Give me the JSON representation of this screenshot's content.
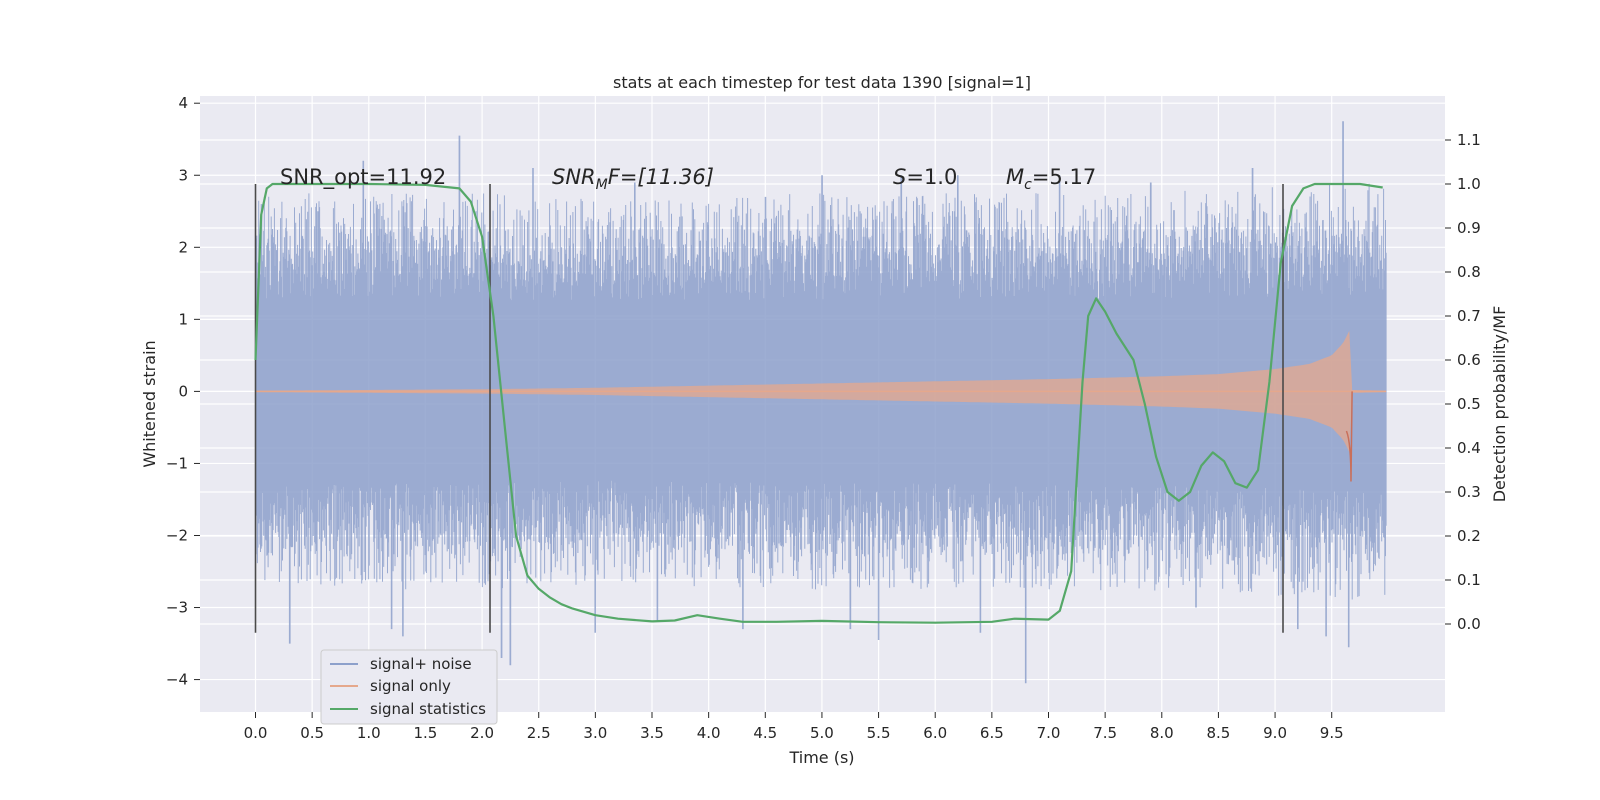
{
  "chart_data": {
    "type": "line",
    "title": "stats at each timestep for test data 1390 [signal=1]",
    "xlabel": "Time (s)",
    "ylabel_left": "Whitened strain",
    "ylabel_right": "Detection probability/MF",
    "xlim": [
      -0.49,
      10.5
    ],
    "ylim_left": [
      -4.45,
      4.1
    ],
    "ylim_right": [
      -0.2,
      1.2
    ],
    "x_ticks": [
      "0.0",
      "0.5",
      "1.0",
      "1.5",
      "2.0",
      "2.5",
      "3.0",
      "3.5",
      "4.0",
      "4.5",
      "5.0",
      "5.5",
      "6.0",
      "6.5",
      "7.0",
      "7.5",
      "8.0",
      "8.5",
      "9.0",
      "9.5"
    ],
    "y_ticks_left": [
      "−4",
      "−3",
      "−2",
      "−1",
      "0",
      "1",
      "2",
      "3",
      "4"
    ],
    "y_ticks_right": [
      "0.0",
      "0.1",
      "0.2",
      "0.3",
      "0.4",
      "0.5",
      "0.6",
      "0.7",
      "0.8",
      "0.9",
      "1.0",
      "1.1"
    ],
    "grid": true,
    "legend_position": "lower-left",
    "annotations": {
      "snr_opt": "SNR_opt=11.92",
      "snr_mf_base": "SNR",
      "snr_mf_sub": "M",
      "snr_mf_rest": "F=[11.36]",
      "s_italic": "S",
      "s_value": "=1.0",
      "mc_base": "M",
      "mc_sub": "c",
      "mc_value": "=5.17"
    },
    "window_markers": [
      0.0,
      2.07,
      9.07
    ],
    "window_range": [
      -0.02,
      1.0
    ],
    "series": [
      {
        "name": "signal+ noise",
        "axis": "left",
        "color": "#8da0cb",
        "envelope": {
          "t": [
            0.0,
            2.0,
            3.0,
            5.0,
            7.0,
            9.0,
            9.98
          ],
          "typical_upper": [
            1.7,
            1.7,
            1.65,
            1.7,
            1.7,
            1.75,
            1.8
          ],
          "typical_lower": [
            -1.7,
            -1.7,
            -1.65,
            -1.7,
            -1.7,
            -1.75,
            -1.8
          ]
        },
        "peaks": [
          [
            0.05,
            2.6
          ],
          [
            0.3,
            -3.5
          ],
          [
            0.55,
            2.5
          ],
          [
            0.95,
            3.2
          ],
          [
            1.2,
            -3.3
          ],
          [
            1.3,
            -3.4
          ],
          [
            1.8,
            3.55
          ],
          [
            2.17,
            -3.7
          ],
          [
            2.25,
            -3.8
          ],
          [
            2.45,
            3.1
          ],
          [
            3.0,
            -3.35
          ],
          [
            3.35,
            2.9
          ],
          [
            3.55,
            -3.2
          ],
          [
            4.3,
            -3.3
          ],
          [
            4.5,
            2.7
          ],
          [
            5.0,
            3.0
          ],
          [
            5.25,
            -3.3
          ],
          [
            5.5,
            -3.45
          ],
          [
            5.7,
            3.0
          ],
          [
            6.2,
            3.0
          ],
          [
            6.4,
            -3.35
          ],
          [
            6.8,
            -4.05
          ],
          [
            7.1,
            3.0
          ],
          [
            7.9,
            2.9
          ],
          [
            8.3,
            -3.0
          ],
          [
            8.8,
            3.1
          ],
          [
            9.2,
            -3.3
          ],
          [
            9.45,
            -3.4
          ],
          [
            9.6,
            3.75
          ],
          [
            9.65,
            -3.55
          ]
        ]
      },
      {
        "name": "signal only",
        "axis": "left",
        "color": "#e5a88c",
        "chirp_envelope": {
          "t": [
            0.0,
            2.0,
            3.0,
            4.0,
            5.0,
            6.0,
            7.0,
            8.0,
            8.5,
            9.0,
            9.3,
            9.5,
            9.6,
            9.65,
            9.67,
            9.68,
            9.98
          ],
          "amp": [
            0.01,
            0.03,
            0.05,
            0.08,
            0.11,
            0.14,
            0.17,
            0.21,
            0.24,
            0.31,
            0.38,
            0.5,
            0.67,
            0.82,
            0.9,
            0.02,
            0.01
          ]
        },
        "merger_dip": -1.25
      },
      {
        "name": "signal statistics",
        "axis": "right",
        "color": "#55a868",
        "x": [
          0.0,
          0.05,
          0.1,
          0.15,
          0.2,
          0.3,
          0.5,
          1.0,
          1.5,
          1.8,
          1.9,
          2.0,
          2.1,
          2.2,
          2.3,
          2.4,
          2.5,
          2.6,
          2.7,
          2.8,
          3.0,
          3.2,
          3.5,
          3.7,
          3.9,
          4.1,
          4.3,
          4.6,
          5.0,
          5.5,
          6.0,
          6.5,
          6.7,
          7.0,
          7.1,
          7.2,
          7.3,
          7.35,
          7.42,
          7.5,
          7.6,
          7.75,
          7.85,
          7.95,
          8.05,
          8.15,
          8.25,
          8.35,
          8.45,
          8.55,
          8.65,
          8.75,
          8.85,
          8.95,
          9.05,
          9.15,
          9.25,
          9.35,
          9.5,
          9.75,
          9.95
        ],
        "values": [
          0.6,
          0.93,
          0.99,
          1.0,
          1.0,
          1.0,
          1.0,
          1.0,
          0.998,
          0.99,
          0.96,
          0.88,
          0.7,
          0.45,
          0.2,
          0.11,
          0.08,
          0.06,
          0.045,
          0.035,
          0.02,
          0.012,
          0.006,
          0.008,
          0.02,
          0.012,
          0.005,
          0.005,
          0.007,
          0.004,
          0.003,
          0.005,
          0.012,
          0.01,
          0.03,
          0.12,
          0.55,
          0.7,
          0.74,
          0.71,
          0.66,
          0.6,
          0.5,
          0.38,
          0.3,
          0.28,
          0.3,
          0.36,
          0.39,
          0.37,
          0.32,
          0.31,
          0.35,
          0.55,
          0.82,
          0.95,
          0.99,
          1.0,
          1.0,
          1.0,
          0.992
        ]
      }
    ]
  }
}
